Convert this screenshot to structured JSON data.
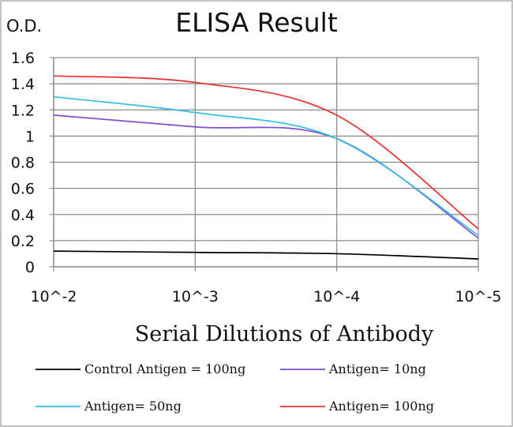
{
  "chart_data": {
    "type": "line",
    "title": "ELISA Result",
    "ylabel": "O.D.",
    "xlabel": "Serial Dilutions  of Antibody",
    "categories": [
      "10^-2",
      "10^-3",
      "10^-4",
      "10^-5"
    ],
    "ylim": [
      0,
      1.6
    ],
    "yticks": [
      "0",
      "0.2",
      "0.4",
      "0.6",
      "0.8",
      "1",
      "1.2",
      "1.4",
      "1.6"
    ],
    "grid": true,
    "legend_position": "bottom",
    "series": [
      {
        "name": "Control Antigen = 100ng",
        "color": "#000000",
        "values": [
          0.12,
          0.11,
          0.1,
          0.06
        ]
      },
      {
        "name": "Antigen= 10ng",
        "color": "#7f4fd0",
        "values": [
          1.16,
          1.07,
          0.98,
          0.22
        ]
      },
      {
        "name": "Antigen= 50ng",
        "color": "#34bde0",
        "values": [
          1.3,
          1.18,
          0.98,
          0.24
        ]
      },
      {
        "name": "Antigen= 100ng",
        "color": "#e83030",
        "values": [
          1.46,
          1.41,
          1.16,
          0.29
        ]
      }
    ]
  }
}
